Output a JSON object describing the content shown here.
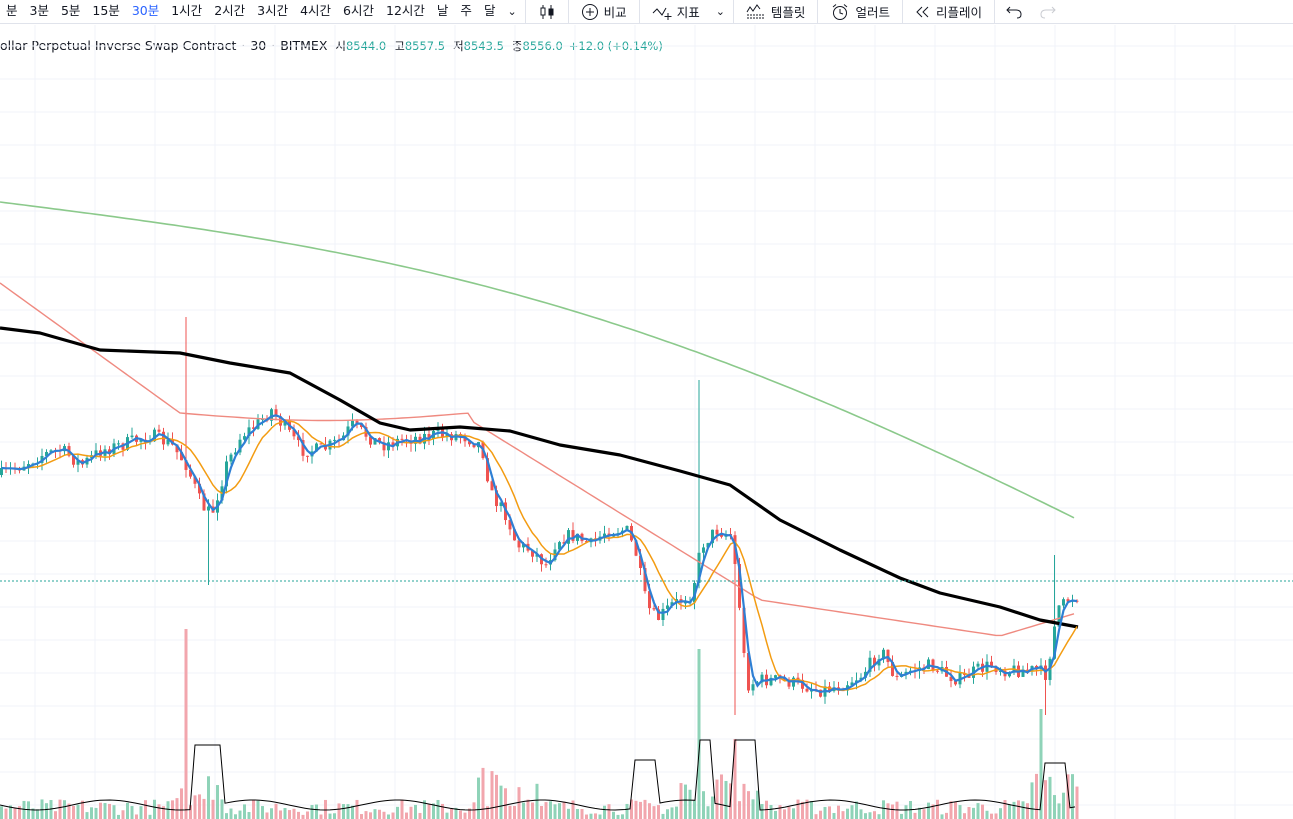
{
  "toolbar": {
    "timeframes": [
      {
        "label": "분",
        "active": false
      },
      {
        "label": "3분",
        "active": false
      },
      {
        "label": "5분",
        "active": false
      },
      {
        "label": "15분",
        "active": false
      },
      {
        "label": "30분",
        "active": true
      },
      {
        "label": "1시간",
        "active": false
      },
      {
        "label": "2시간",
        "active": false
      },
      {
        "label": "3시간",
        "active": false
      },
      {
        "label": "4시간",
        "active": false
      },
      {
        "label": "6시간",
        "active": false
      },
      {
        "label": "12시간",
        "active": false
      },
      {
        "label": "날",
        "active": false
      },
      {
        "label": "주",
        "active": false
      },
      {
        "label": "달",
        "active": false
      }
    ],
    "compare_label": "비교",
    "indicators_label": "지표",
    "templates_label": "템플릿",
    "alert_label": "얼러트",
    "replay_label": "리플레이"
  },
  "legend": {
    "symbol_title": "ollar Perpetual Inverse Swap Contract",
    "interval": "30",
    "exchange": "BITMEX",
    "open_label": "시",
    "open_value": "8544.0",
    "high_label": "고",
    "high_value": "8557.5",
    "low_label": "저",
    "low_value": "8543.5",
    "close_label": "종",
    "close_value": "8556.0",
    "change": "+12.0 (+0.14%)"
  },
  "colors": {
    "up": "#26a69a",
    "down": "#ef5350",
    "ma_black": "#000000",
    "ma_blue": "#2e7fd4",
    "ma_orange": "#f39c12",
    "ma_red": "#ef8a80",
    "ma_green": "#8bc98b",
    "volume_up": "#8fd3b8",
    "volume_down": "#f2a6ad",
    "last_price_line": "#26a69a"
  },
  "chart_data": {
    "type": "candlestick",
    "last_close": 8556.0,
    "moving_averages": [
      {
        "color": "#2e7fd4"
      },
      {
        "color": "#f39c12"
      },
      {
        "color": "#ef8a80"
      },
      {
        "color": "#000000"
      },
      {
        "color": "#8bc98b"
      }
    ],
    "volume_pane": true,
    "grid": true
  }
}
